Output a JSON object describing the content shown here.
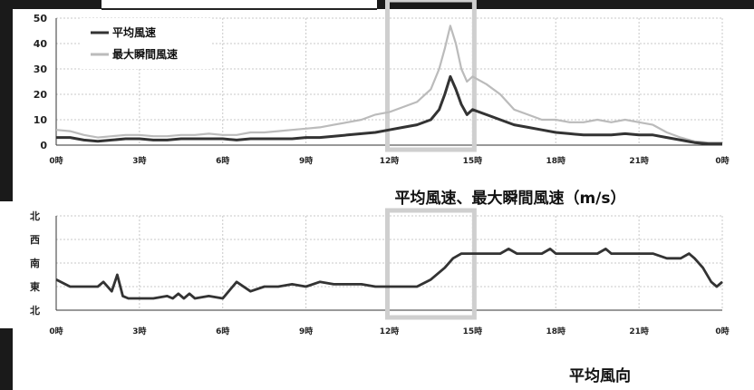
{
  "chart_data": [
    {
      "type": "line",
      "title": "",
      "caption": "平均風速、最大瞬間風速（m/s）",
      "xlabel": "",
      "ylabel": "",
      "x_ticks": [
        "0時",
        "3時",
        "6時",
        "9時",
        "12時",
        "15時",
        "18時",
        "21時",
        "0時"
      ],
      "xlim": [
        0,
        24
      ],
      "ylim": [
        0,
        50
      ],
      "y_ticks": [
        "0",
        "10",
        "20",
        "30",
        "40",
        "50"
      ],
      "grid": true,
      "legend": "top-left",
      "highlight_range": [
        12,
        15
      ],
      "series": [
        {
          "name": "平均風速",
          "color": "#333333",
          "points": [
            [
              0,
              3
            ],
            [
              0.5,
              3
            ],
            [
              1,
              2
            ],
            [
              1.5,
              1.5
            ],
            [
              2,
              2
            ],
            [
              2.5,
              2.5
            ],
            [
              3,
              2.5
            ],
            [
              3.5,
              2
            ],
            [
              4,
              2
            ],
            [
              4.5,
              2.5
            ],
            [
              5,
              2.5
            ],
            [
              5.5,
              2.5
            ],
            [
              6,
              2.5
            ],
            [
              6.5,
              2
            ],
            [
              7,
              2.5
            ],
            [
              7.5,
              2.5
            ],
            [
              8,
              2.5
            ],
            [
              8.5,
              2.5
            ],
            [
              9,
              3
            ],
            [
              9.5,
              3
            ],
            [
              10,
              3.5
            ],
            [
              10.5,
              4
            ],
            [
              11,
              4.5
            ],
            [
              11.5,
              5
            ],
            [
              12,
              6
            ],
            [
              12.5,
              7
            ],
            [
              13,
              8
            ],
            [
              13.5,
              10
            ],
            [
              13.8,
              14
            ],
            [
              14,
              20
            ],
            [
              14.2,
              27
            ],
            [
              14.4,
              22
            ],
            [
              14.6,
              16
            ],
            [
              14.8,
              12
            ],
            [
              15,
              14
            ],
            [
              15.5,
              12
            ],
            [
              16,
              10
            ],
            [
              16.5,
              8
            ],
            [
              17,
              7
            ],
            [
              17.5,
              6
            ],
            [
              18,
              5
            ],
            [
              18.5,
              4.5
            ],
            [
              19,
              4
            ],
            [
              19.5,
              4
            ],
            [
              20,
              4
            ],
            [
              20.5,
              4.5
            ],
            [
              21,
              4
            ],
            [
              21.5,
              4
            ],
            [
              22,
              3
            ],
            [
              22.5,
              2
            ],
            [
              23,
              1
            ],
            [
              23.5,
              0.5
            ],
            [
              24,
              0.5
            ]
          ]
        },
        {
          "name": "最大瞬間風速",
          "color": "#bbbbbb",
          "points": [
            [
              0,
              6
            ],
            [
              0.5,
              5.5
            ],
            [
              1,
              4
            ],
            [
              1.5,
              3
            ],
            [
              2,
              3.5
            ],
            [
              2.5,
              4
            ],
            [
              3,
              4
            ],
            [
              3.5,
              3.5
            ],
            [
              4,
              3.5
            ],
            [
              4.5,
              4
            ],
            [
              5,
              4
            ],
            [
              5.5,
              4.5
            ],
            [
              6,
              4
            ],
            [
              6.5,
              4
            ],
            [
              7,
              5
            ],
            [
              7.5,
              5
            ],
            [
              8,
              5.5
            ],
            [
              8.5,
              6
            ],
            [
              9,
              6.5
            ],
            [
              9.5,
              7
            ],
            [
              10,
              8
            ],
            [
              10.5,
              9
            ],
            [
              11,
              10
            ],
            [
              11.5,
              12
            ],
            [
              12,
              13
            ],
            [
              12.5,
              15
            ],
            [
              13,
              17
            ],
            [
              13.5,
              22
            ],
            [
              13.8,
              30
            ],
            [
              14,
              38
            ],
            [
              14.2,
              47
            ],
            [
              14.4,
              40
            ],
            [
              14.6,
              30
            ],
            [
              14.8,
              25
            ],
            [
              15,
              27
            ],
            [
              15.5,
              24
            ],
            [
              16,
              20
            ],
            [
              16.5,
              14
            ],
            [
              17,
              12
            ],
            [
              17.5,
              10
            ],
            [
              18,
              10
            ],
            [
              18.5,
              9
            ],
            [
              19,
              9
            ],
            [
              19.5,
              10
            ],
            [
              20,
              9
            ],
            [
              20.5,
              10
            ],
            [
              21,
              9
            ],
            [
              21.5,
              8
            ],
            [
              22,
              5
            ],
            [
              22.5,
              3
            ],
            [
              23,
              1.5
            ],
            [
              23.5,
              1
            ],
            [
              24,
              1
            ]
          ]
        }
      ]
    },
    {
      "type": "line",
      "title": "",
      "caption": "平均風向",
      "xlabel": "",
      "ylabel": "",
      "x_ticks": [
        "0時",
        "3時",
        "6時",
        "9時",
        "12時",
        "15時",
        "18時",
        "21時",
        "0時"
      ],
      "xlim": [
        0,
        24
      ],
      "y_categories": [
        "北",
        "東",
        "南",
        "西",
        "北"
      ],
      "grid": true,
      "highlight_range": [
        12,
        15
      ],
      "series": [
        {
          "color": "#333333",
          "points": [
            [
              0,
              1.3
            ],
            [
              0.5,
              1
            ],
            [
              1,
              1
            ],
            [
              1.5,
              1
            ],
            [
              1.7,
              1.2
            ],
            [
              2,
              0.8
            ],
            [
              2.2,
              1.5
            ],
            [
              2.4,
              0.6
            ],
            [
              2.6,
              0.5
            ],
            [
              3,
              0.5
            ],
            [
              3.5,
              0.5
            ],
            [
              4,
              0.6
            ],
            [
              4.2,
              0.5
            ],
            [
              4.4,
              0.7
            ],
            [
              4.6,
              0.5
            ],
            [
              4.8,
              0.7
            ],
            [
              5,
              0.5
            ],
            [
              5.5,
              0.6
            ],
            [
              6,
              0.5
            ],
            [
              6.5,
              1.2
            ],
            [
              7,
              0.8
            ],
            [
              7.5,
              1
            ],
            [
              8,
              1
            ],
            [
              8.5,
              1.1
            ],
            [
              9,
              1
            ],
            [
              9.5,
              1.2
            ],
            [
              10,
              1.1
            ],
            [
              10.5,
              1.1
            ],
            [
              11,
              1.1
            ],
            [
              11.5,
              1
            ],
            [
              12,
              1
            ],
            [
              12.5,
              1
            ],
            [
              13,
              1
            ],
            [
              13.5,
              1.3
            ],
            [
              14,
              1.8
            ],
            [
              14.3,
              2.2
            ],
            [
              14.6,
              2.4
            ],
            [
              15,
              2.4
            ],
            [
              16,
              2.4
            ],
            [
              16.3,
              2.6
            ],
            [
              16.6,
              2.4
            ],
            [
              17,
              2.4
            ],
            [
              17.5,
              2.4
            ],
            [
              17.8,
              2.6
            ],
            [
              18,
              2.4
            ],
            [
              19,
              2.4
            ],
            [
              19.5,
              2.4
            ],
            [
              19.8,
              2.6
            ],
            [
              20,
              2.4
            ],
            [
              21,
              2.4
            ],
            [
              21.5,
              2.4
            ],
            [
              22,
              2.2
            ],
            [
              22.5,
              2.2
            ],
            [
              22.8,
              2.4
            ],
            [
              23,
              2.2
            ],
            [
              23.3,
              1.8
            ],
            [
              23.6,
              1.2
            ],
            [
              23.8,
              1
            ],
            [
              24,
              1.2
            ]
          ]
        }
      ]
    }
  ]
}
